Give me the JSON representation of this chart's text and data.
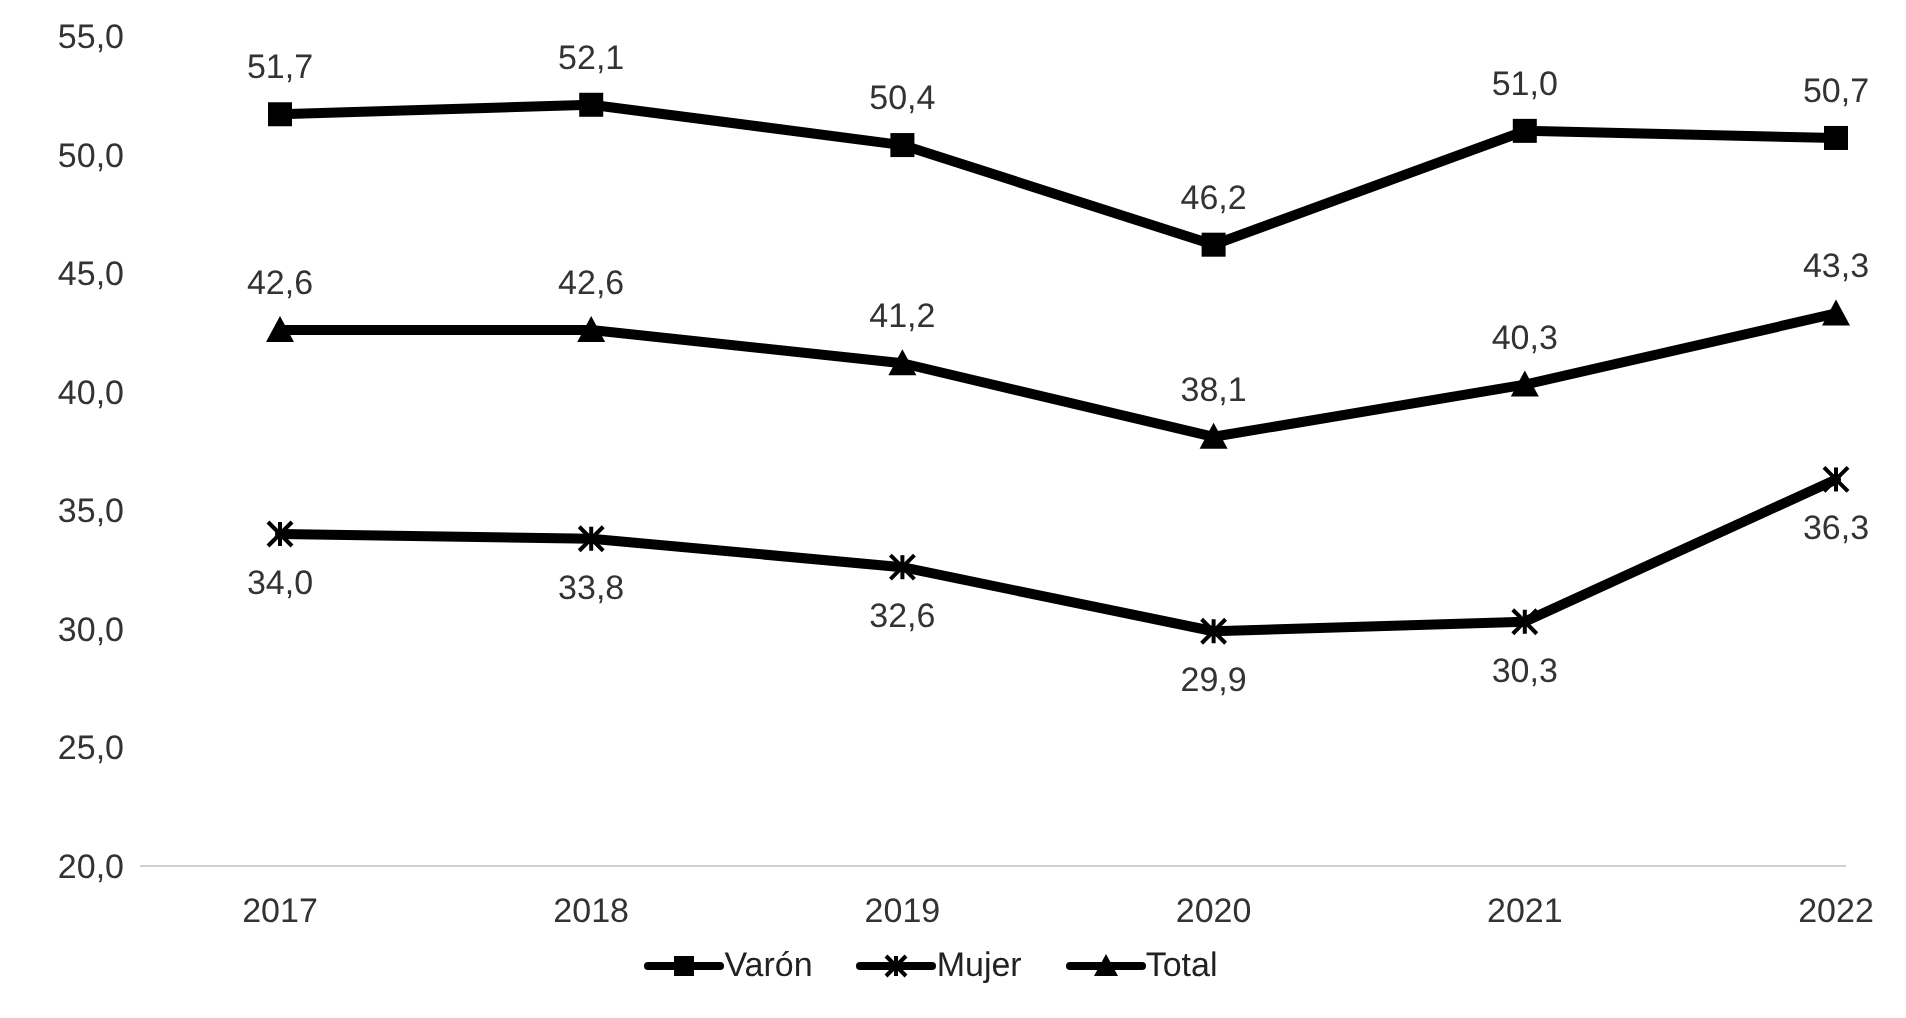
{
  "chart_data": {
    "type": "line",
    "categories": [
      "2017",
      "2018",
      "2019",
      "2020",
      "2021",
      "2022"
    ],
    "series": [
      {
        "name": "Varón",
        "color": "#000000",
        "marker": "square",
        "values": [
          51.7,
          52.1,
          50.4,
          46.2,
          51.0,
          50.7
        ],
        "value_labels": [
          "51,7",
          "52,1",
          "50,4",
          "46,2",
          "51,0",
          "50,7"
        ]
      },
      {
        "name": "Mujer",
        "color": "#000000",
        "marker": "cross",
        "values": [
          34.0,
          33.8,
          32.6,
          29.9,
          30.3,
          36.3
        ],
        "value_labels": [
          "34,0",
          "33,8",
          "32,6",
          "29,9",
          "30,3",
          "36,3"
        ]
      },
      {
        "name": "Total",
        "color": "#000000",
        "marker": "triangle",
        "values": [
          42.6,
          42.6,
          41.2,
          38.1,
          40.3,
          43.3
        ],
        "value_labels": [
          "42,6",
          "42,6",
          "41,2",
          "38,1",
          "40,3",
          "43,3"
        ]
      }
    ],
    "ylim": [
      20,
      55
    ],
    "yticks": [
      {
        "value": 20,
        "label": "20,0"
      },
      {
        "value": 25,
        "label": "25,0"
      },
      {
        "value": 30,
        "label": "30,0"
      },
      {
        "value": 35,
        "label": "35,0"
      },
      {
        "value": 40,
        "label": "40,0"
      },
      {
        "value": 45,
        "label": "45,0"
      },
      {
        "value": 50,
        "label": "50,0"
      },
      {
        "value": 55,
        "label": "55,0"
      }
    ],
    "grid": false,
    "legend": "bottom",
    "line_style": "solid"
  }
}
